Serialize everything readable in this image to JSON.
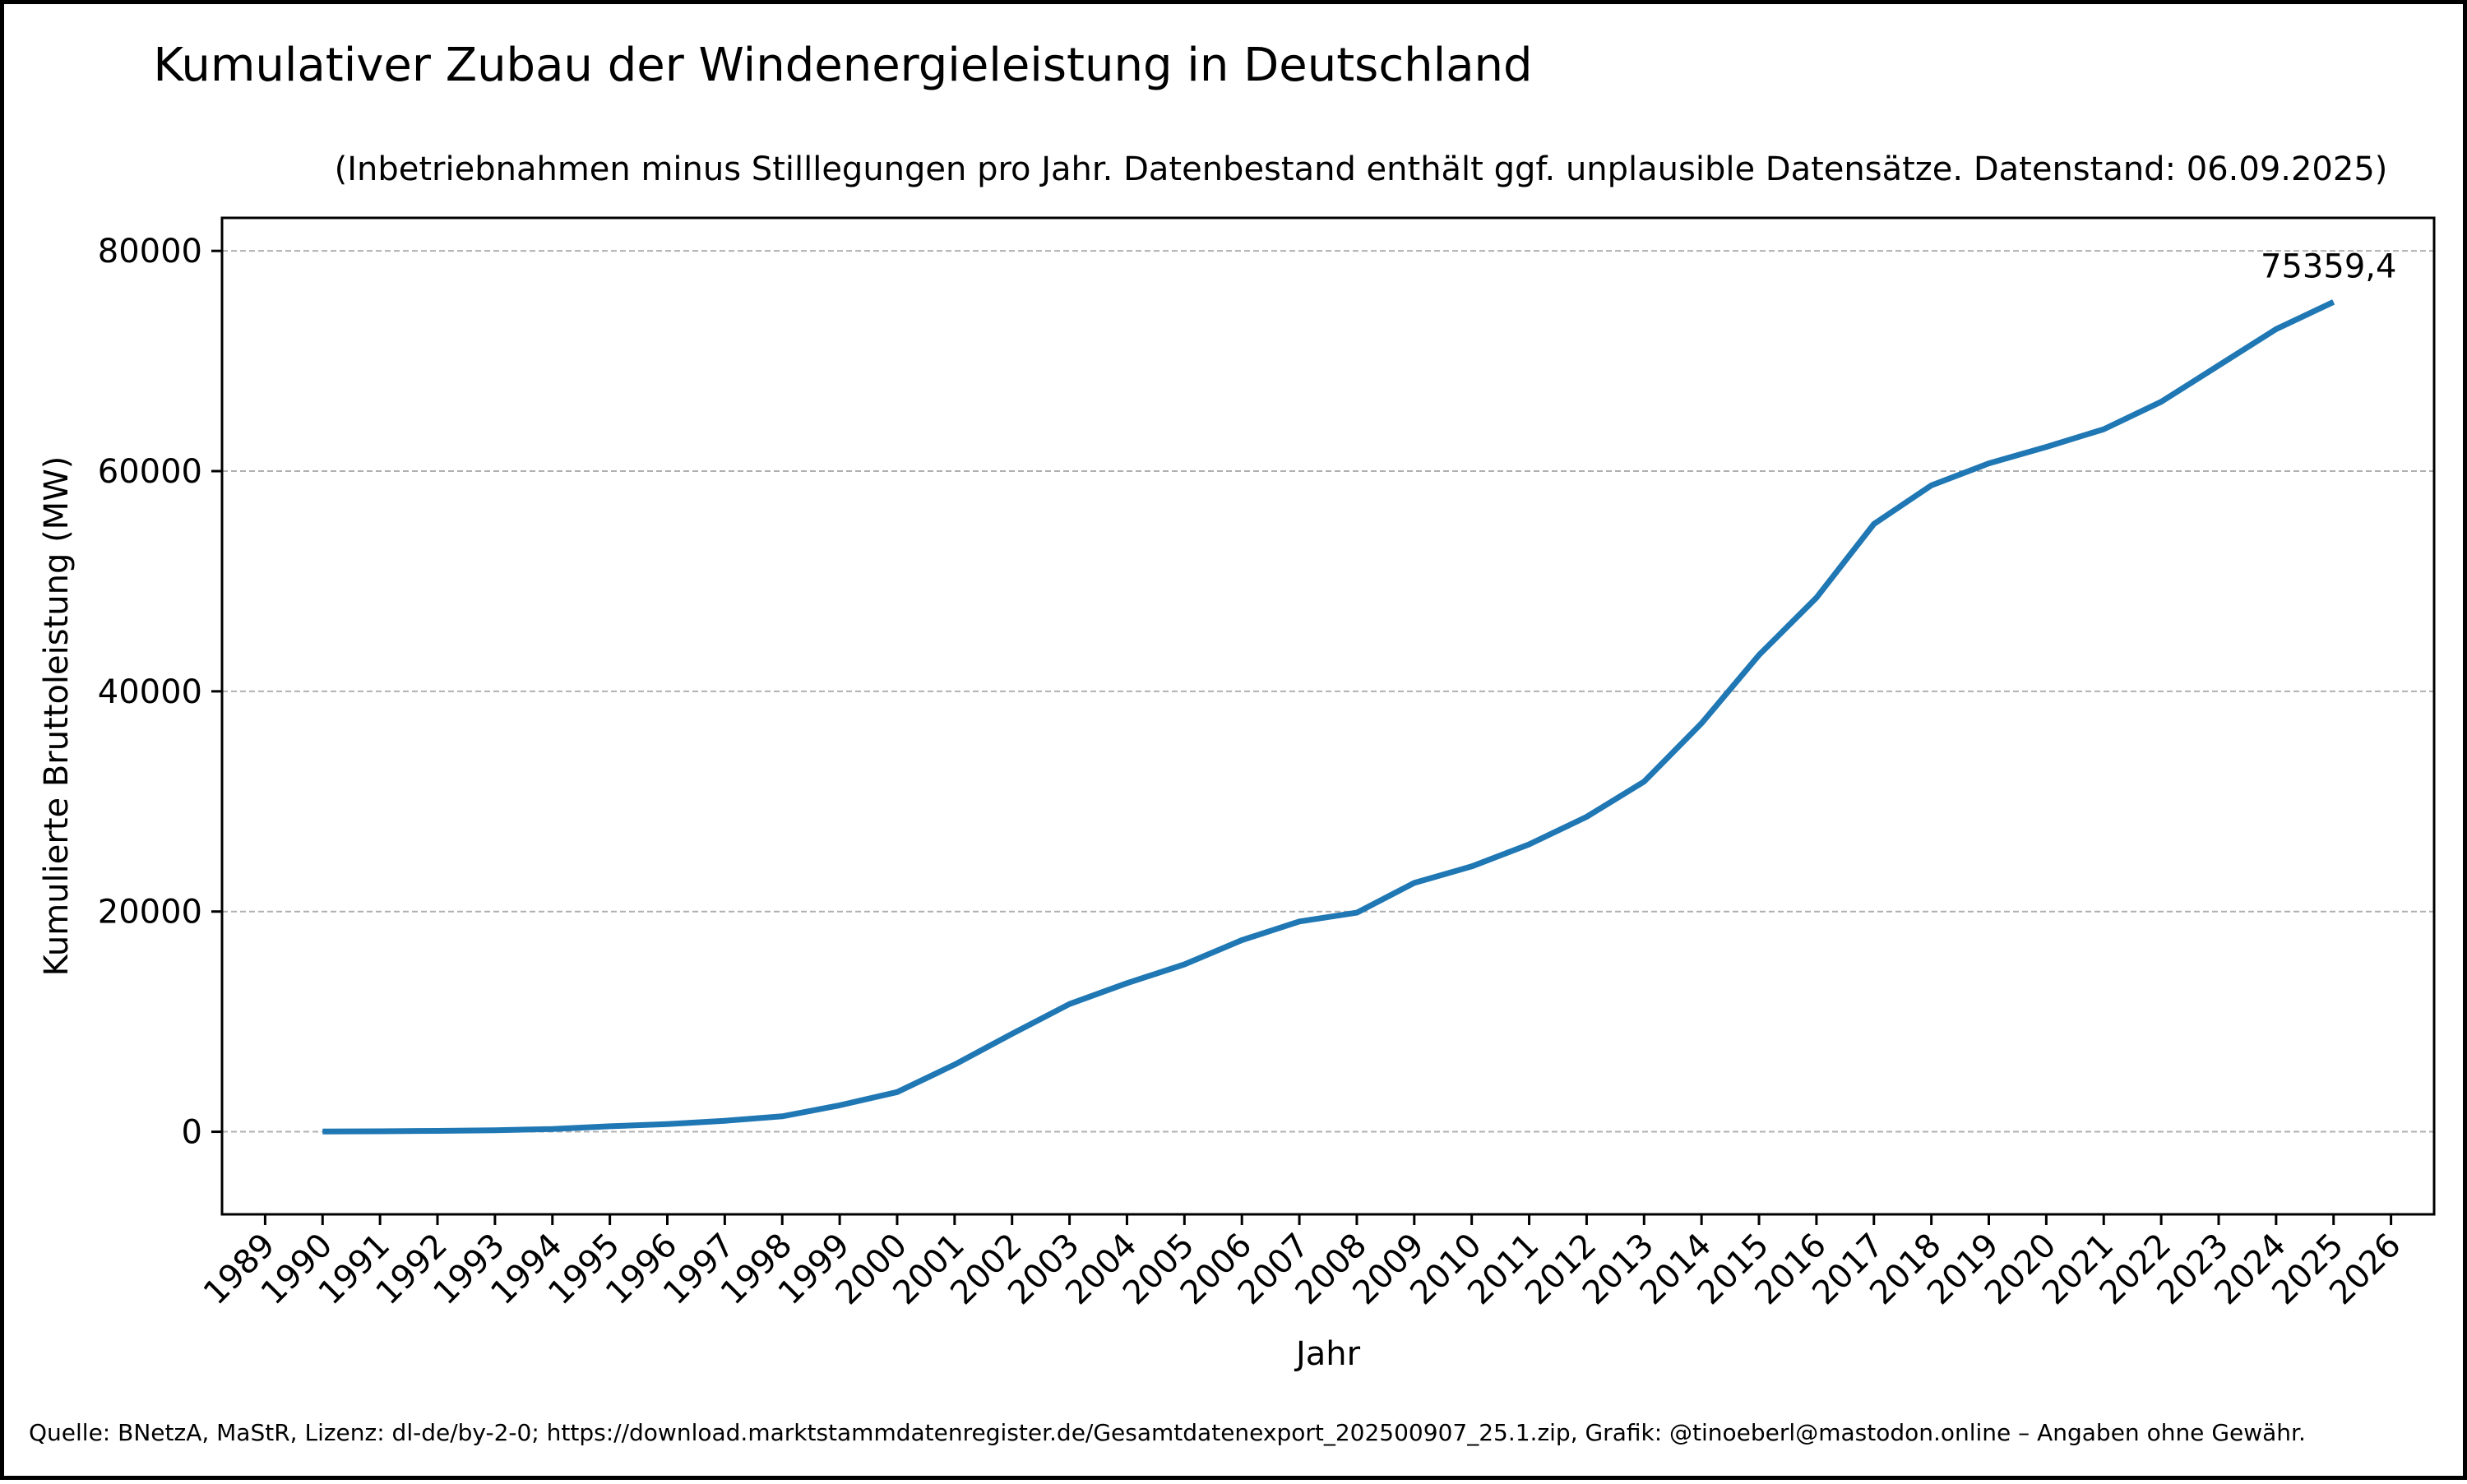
{
  "chart_data": {
    "type": "line",
    "title": "Kumulativer Zubau der Windenergieleistung in Deutschland",
    "subtitle": "(Inbetriebnahmen minus Stilllegungen pro Jahr. Datenbestand enthält ggf. unplausible Datensätze. Datenstand: 06.09.2025)",
    "xlabel": "Jahr",
    "ylabel": "Kumulierte Bruttoleistung (MW)",
    "footer": "Quelle: BNetzA, MaStR, Lizenz: dl-de/by-2-0; https://download.marktstammdatenregister.de/Gesamtdatenexport_202500907_25.1.zip, Grafik: @tinoeberl@mastodon.online – Angaben ohne Gewähr.",
    "x_ticks": [
      1989,
      1990,
      1991,
      1992,
      1993,
      1994,
      1995,
      1996,
      1997,
      1998,
      1999,
      2000,
      2001,
      2002,
      2003,
      2004,
      2005,
      2006,
      2007,
      2008,
      2009,
      2010,
      2011,
      2012,
      2013,
      2014,
      2015,
      2016,
      2017,
      2018,
      2019,
      2020,
      2021,
      2022,
      2023,
      2024,
      2025,
      2026
    ],
    "y_ticks": [
      0,
      20000,
      40000,
      60000,
      80000
    ],
    "y_tick_labels": [
      "0",
      "20000",
      "40000",
      "60000",
      "80000"
    ],
    "xlim": [
      1988.25,
      2026.75
    ],
    "ylim": [
      -7500,
      83000
    ],
    "grid": "horizontal-dashed",
    "series": [
      {
        "color": "#1f77b4",
        "x": [
          1990,
          1991,
          1992,
          1993,
          1994,
          1995,
          1996,
          1997,
          1998,
          1999,
          2000,
          2001,
          2002,
          2003,
          2004,
          2005,
          2006,
          2007,
          2008,
          2009,
          2010,
          2011,
          2012,
          2013,
          2014,
          2015,
          2016,
          2017,
          2018,
          2019,
          2020,
          2021,
          2022,
          2023,
          2024,
          2025
        ],
        "values": [
          20,
          40,
          80,
          130,
          250,
          500,
          700,
          1000,
          1400,
          2400,
          3600,
          6100,
          8900,
          11600,
          13500,
          15200,
          17400,
          19100,
          19900,
          22600,
          24100,
          26100,
          28600,
          31800,
          37100,
          43300,
          48500,
          55200,
          58700,
          60700,
          62200,
          63800,
          66300,
          69600,
          72900,
          75359.4
        ]
      }
    ],
    "annotations": [
      {
        "text": "75359,4",
        "x": 2025,
        "y": 75359.4
      }
    ]
  }
}
